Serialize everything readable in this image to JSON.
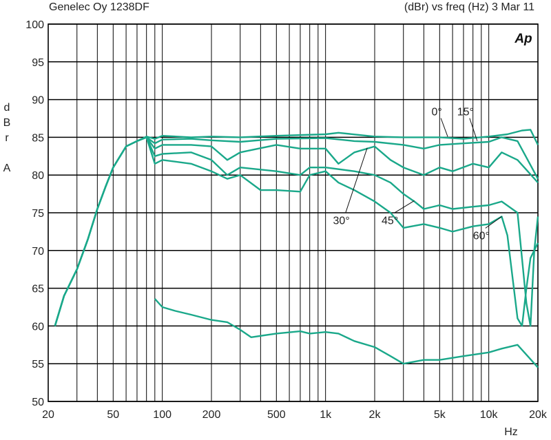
{
  "header": {
    "left": "Genelec Oy 1238DF",
    "right": "(dBr) vs freq (Hz) 3 Mar 11"
  },
  "logo_text": "Ap",
  "colors": {
    "curve": "#1aa88a",
    "grid": "#000000",
    "background": "#ffffff"
  },
  "chart_data": {
    "type": "line",
    "title": "",
    "xlabel": "Hz",
    "ylabel_chars": [
      "d",
      "B",
      "r",
      "",
      "A"
    ],
    "xscale": "log",
    "xlim": [
      20,
      20000
    ],
    "ylim": [
      50,
      100
    ],
    "grid": true,
    "yticks": [
      50,
      55,
      60,
      65,
      70,
      75,
      80,
      85,
      90,
      95,
      100
    ],
    "xtick_labels": [
      {
        "value": 20,
        "label": "20"
      },
      {
        "value": 50,
        "label": "50"
      },
      {
        "value": 100,
        "label": "100"
      },
      {
        "value": 200,
        "label": "200"
      },
      {
        "value": 500,
        "label": "500"
      },
      {
        "value": 1000,
        "label": "1k"
      },
      {
        "value": 2000,
        "label": "2k"
      },
      {
        "value": 5000,
        "label": "5k"
      },
      {
        "value": 10000,
        "label": "10k"
      },
      {
        "value": 20000,
        "label": "20k"
      }
    ],
    "series": [
      {
        "name": "0°",
        "points": [
          [
            22,
            60
          ],
          [
            25,
            64
          ],
          [
            30,
            67.5
          ],
          [
            35,
            71.5
          ],
          [
            40,
            75.5
          ],
          [
            45,
            78.5
          ],
          [
            50,
            81
          ],
          [
            60,
            83.8
          ],
          [
            70,
            84.5
          ],
          [
            80,
            85.1
          ],
          [
            90,
            84.8
          ],
          [
            100,
            85.2
          ],
          [
            150,
            85
          ],
          [
            200,
            85.1
          ],
          [
            300,
            85
          ],
          [
            500,
            85.2
          ],
          [
            1000,
            85.4
          ],
          [
            1200,
            85.6
          ],
          [
            2000,
            85.1
          ],
          [
            3000,
            85
          ],
          [
            5000,
            85
          ],
          [
            7000,
            84.8
          ],
          [
            10000,
            85.1
          ],
          [
            13000,
            85.4
          ],
          [
            16000,
            85.9
          ],
          [
            18000,
            86
          ],
          [
            20000,
            84
          ]
        ]
      },
      {
        "name": "15°",
        "points": [
          [
            22,
            60
          ],
          [
            25,
            64
          ],
          [
            30,
            67.5
          ],
          [
            35,
            71.5
          ],
          [
            40,
            75.5
          ],
          [
            45,
            78.5
          ],
          [
            50,
            81
          ],
          [
            60,
            83.8
          ],
          [
            70,
            84.5
          ],
          [
            80,
            85
          ],
          [
            90,
            84.2
          ],
          [
            100,
            84.7
          ],
          [
            150,
            84.8
          ],
          [
            200,
            84.6
          ],
          [
            300,
            84.4
          ],
          [
            500,
            84.8
          ],
          [
            1000,
            84.9
          ],
          [
            1500,
            84.5
          ],
          [
            2000,
            84.4
          ],
          [
            3000,
            84
          ],
          [
            4000,
            83.5
          ],
          [
            5000,
            84
          ],
          [
            7000,
            84.2
          ],
          [
            10000,
            84.4
          ],
          [
            12000,
            85
          ],
          [
            15000,
            84.5
          ],
          [
            20000,
            79.5
          ]
        ]
      },
      {
        "name": "30°",
        "points": [
          [
            22,
            60
          ],
          [
            25,
            64
          ],
          [
            30,
            67.5
          ],
          [
            35,
            71.5
          ],
          [
            40,
            75.5
          ],
          [
            45,
            78.5
          ],
          [
            50,
            81
          ],
          [
            60,
            83.8
          ],
          [
            70,
            84.5
          ],
          [
            80,
            85
          ],
          [
            90,
            83.5
          ],
          [
            100,
            84
          ],
          [
            150,
            84
          ],
          [
            200,
            83.8
          ],
          [
            250,
            82
          ],
          [
            300,
            83
          ],
          [
            500,
            84
          ],
          [
            700,
            83.5
          ],
          [
            1000,
            83.5
          ],
          [
            1200,
            81.5
          ],
          [
            1500,
            83
          ],
          [
            2000,
            83.8
          ],
          [
            2500,
            82
          ],
          [
            3000,
            81
          ],
          [
            4000,
            80
          ],
          [
            5000,
            81
          ],
          [
            6000,
            80.5
          ],
          [
            8000,
            81.5
          ],
          [
            10000,
            81
          ],
          [
            12000,
            83
          ],
          [
            15000,
            82
          ],
          [
            20000,
            79
          ]
        ]
      },
      {
        "name": "45°",
        "points": [
          [
            22,
            60
          ],
          [
            25,
            64
          ],
          [
            30,
            67.5
          ],
          [
            35,
            71.5
          ],
          [
            40,
            75.5
          ],
          [
            45,
            78.5
          ],
          [
            50,
            81
          ],
          [
            60,
            83.8
          ],
          [
            70,
            84.5
          ],
          [
            80,
            85
          ],
          [
            90,
            82.5
          ],
          [
            100,
            82.8
          ],
          [
            150,
            83
          ],
          [
            200,
            82
          ],
          [
            250,
            80
          ],
          [
            300,
            81
          ],
          [
            500,
            80.5
          ],
          [
            700,
            80
          ],
          [
            800,
            81
          ],
          [
            1000,
            81
          ],
          [
            1500,
            80.5
          ],
          [
            2000,
            80
          ],
          [
            2500,
            79
          ],
          [
            3000,
            77.5
          ],
          [
            3500,
            76.5
          ],
          [
            4000,
            75.5
          ],
          [
            5000,
            76
          ],
          [
            6000,
            75.5
          ],
          [
            8000,
            75.8
          ],
          [
            10000,
            76
          ],
          [
            12000,
            76.5
          ],
          [
            15000,
            75
          ],
          [
            17000,
            63
          ],
          [
            18000,
            60
          ],
          [
            19000,
            70
          ],
          [
            20000,
            74.5
          ]
        ]
      },
      {
        "name": "60°",
        "points": [
          [
            22,
            60
          ],
          [
            25,
            64
          ],
          [
            30,
            67.5
          ],
          [
            35,
            71.5
          ],
          [
            40,
            75.5
          ],
          [
            45,
            78.5
          ],
          [
            50,
            81
          ],
          [
            60,
            83.8
          ],
          [
            70,
            84.5
          ],
          [
            80,
            85
          ],
          [
            90,
            81.5
          ],
          [
            100,
            82
          ],
          [
            150,
            81.5
          ],
          [
            200,
            80.5
          ],
          [
            250,
            79.5
          ],
          [
            300,
            80
          ],
          [
            400,
            78
          ],
          [
            500,
            78
          ],
          [
            700,
            77.8
          ],
          [
            800,
            80
          ],
          [
            1000,
            80.5
          ],
          [
            1200,
            79
          ],
          [
            1500,
            78
          ],
          [
            2000,
            76.5
          ],
          [
            2500,
            75
          ],
          [
            3000,
            73
          ],
          [
            4000,
            73.5
          ],
          [
            5000,
            73
          ],
          [
            6000,
            72.5
          ],
          [
            8000,
            73.2
          ],
          [
            10000,
            73.5
          ],
          [
            12000,
            74.5
          ],
          [
            13000,
            72
          ],
          [
            15000,
            61
          ],
          [
            16000,
            60
          ],
          [
            17000,
            65
          ],
          [
            18000,
            69
          ],
          [
            20000,
            71
          ]
        ]
      },
      {
        "name": "",
        "points": [
          [
            90,
            63.6
          ],
          [
            100,
            62.5
          ],
          [
            120,
            62
          ],
          [
            150,
            61.5
          ],
          [
            200,
            60.8
          ],
          [
            250,
            60.5
          ],
          [
            300,
            59.5
          ],
          [
            350,
            58.5
          ],
          [
            500,
            59
          ],
          [
            700,
            59.3
          ],
          [
            800,
            59
          ],
          [
            1000,
            59.2
          ],
          [
            1200,
            59
          ],
          [
            1500,
            58
          ],
          [
            2000,
            57.2
          ],
          [
            2500,
            56
          ],
          [
            3000,
            55
          ],
          [
            4000,
            55.5
          ],
          [
            5000,
            55.5
          ],
          [
            7000,
            56
          ],
          [
            10000,
            56.5
          ],
          [
            12000,
            57
          ],
          [
            15000,
            57.5
          ],
          [
            20000,
            54.5
          ]
        ]
      }
    ],
    "annotations": [
      {
        "text": "0°",
        "x": 4800,
        "y": 87.9,
        "point_to": [
          5600,
          85.1
        ]
      },
      {
        "text": "15°",
        "x": 7200,
        "y": 87.9,
        "point_to": [
          8500,
          84.5
        ]
      },
      {
        "text": "30°",
        "x": 1250,
        "y": 73.5,
        "point_to": [
          1800,
          83.6
        ]
      },
      {
        "text": "45°",
        "x": 2480,
        "y": 73.5,
        "point_to": [
          3500,
          76.6
        ]
      },
      {
        "text": "60°",
        "x": 9000,
        "y": 71.5,
        "point_to": [
          12000,
          74.5
        ]
      }
    ]
  }
}
